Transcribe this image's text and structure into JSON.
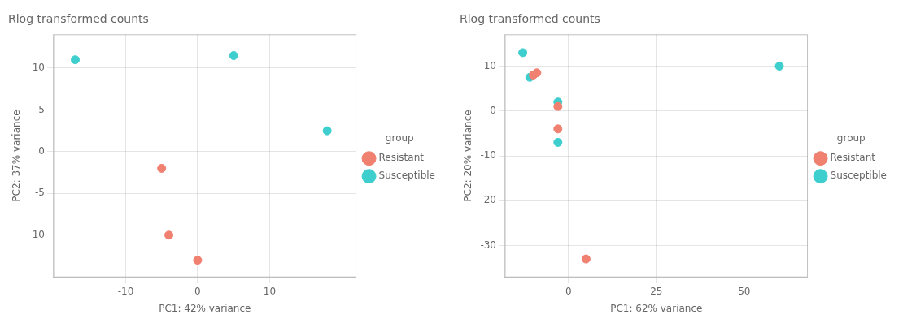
{
  "chart_data": [
    {
      "type": "scatter",
      "title": "Rlog transformed counts",
      "xlabel": "PC1: 42% variance",
      "ylabel": "PC2: 37% variance",
      "series": [
        {
          "name": "Resistant",
          "color": "#F08070",
          "marker": "circle",
          "values": [
            [
              -5,
              -2
            ],
            [
              -4,
              -10
            ],
            [
              0,
              -13
            ]
          ]
        },
        {
          "name": "Susceptible",
          "color": "#3ECECE",
          "marker": "circle",
          "values": [
            [
              -17,
              11
            ],
            [
              5,
              11.5
            ],
            [
              18,
              2.5
            ]
          ]
        }
      ],
      "legend_title": "group",
      "xlim": [
        -20,
        22
      ],
      "ylim": [
        -15,
        14
      ],
      "xticks": [
        -10,
        0,
        10
      ],
      "yticks": [
        -10,
        -5,
        0,
        5,
        10
      ],
      "grid": true,
      "legend": "right"
    },
    {
      "type": "scatter",
      "title": "Rlog transformed counts",
      "xlabel": "PC1: 62% variance",
      "ylabel": "PC2: 20% variance",
      "series": [
        {
          "name": "Resistant",
          "color": "#F08070",
          "marker": "circle",
          "values": [
            [
              -10,
              8
            ],
            [
              -9,
              8.5
            ],
            [
              -3,
              1
            ],
            [
              -3,
              -4
            ],
            [
              5,
              -33
            ]
          ]
        },
        {
          "name": "Susceptible",
          "color": "#3ECECE",
          "marker": "circle",
          "values": [
            [
              -13,
              13
            ],
            [
              -11,
              7.5
            ],
            [
              -3,
              2
            ],
            [
              -3,
              -7
            ],
            [
              60,
              10
            ]
          ]
        }
      ],
      "legend_title": "group",
      "xlim": [
        -18,
        68
      ],
      "ylim": [
        -37,
        17
      ],
      "xticks": [
        0,
        25,
        50
      ],
      "yticks": [
        -30,
        -20,
        -10,
        0,
        10
      ],
      "grid": true,
      "legend": "right"
    }
  ]
}
